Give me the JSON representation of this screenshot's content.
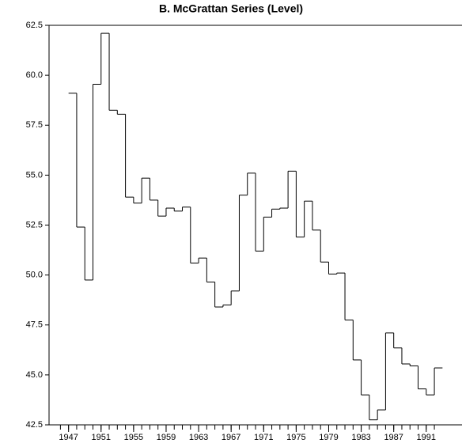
{
  "chart_data": {
    "type": "step",
    "title": "B. McGrattan Series (Level)",
    "x": [
      1947,
      1948,
      1949,
      1950,
      1951,
      1952,
      1953,
      1954,
      1955,
      1956,
      1957,
      1958,
      1959,
      1960,
      1961,
      1962,
      1963,
      1964,
      1965,
      1966,
      1967,
      1968,
      1969,
      1970,
      1971,
      1972,
      1973,
      1974,
      1975,
      1976,
      1977,
      1978,
      1979,
      1980,
      1981,
      1982,
      1983,
      1984,
      1985,
      1986,
      1987,
      1988,
      1989,
      1990,
      1991,
      1992
    ],
    "values": [
      59.1,
      52.4,
      49.75,
      59.55,
      62.1,
      58.25,
      58.05,
      53.9,
      53.6,
      54.85,
      53.75,
      52.95,
      53.35,
      53.2,
      53.4,
      50.6,
      50.85,
      49.65,
      48.4,
      48.5,
      49.2,
      54.0,
      55.1,
      51.2,
      52.9,
      53.3,
      53.35,
      55.2,
      51.9,
      53.7,
      52.25,
      50.65,
      50.05,
      50.1,
      47.75,
      45.75,
      44.0,
      42.75,
      43.25,
      47.1,
      46.35,
      45.55,
      45.45,
      44.3,
      44.0,
      45.35
    ],
    "color": "#000000",
    "xlim": [
      1944.6,
      1995.4
    ],
    "xticks": [
      1947,
      1951,
      1955,
      1959,
      1963,
      1967,
      1971,
      1975,
      1979,
      1983,
      1987,
      1991
    ],
    "xticks_minor": [
      1946,
      1947,
      1948,
      1949,
      1950,
      1951,
      1952,
      1953,
      1954,
      1955,
      1956,
      1957,
      1958,
      1959,
      1960,
      1961,
      1962,
      1963,
      1964,
      1965,
      1966,
      1967,
      1968,
      1969,
      1970,
      1971,
      1972,
      1973,
      1974,
      1975,
      1976,
      1977,
      1978,
      1979,
      1980,
      1981,
      1982,
      1983,
      1984,
      1985,
      1986,
      1987,
      1988,
      1989,
      1990,
      1991,
      1992
    ],
    "ylim": [
      42.5,
      62.5
    ],
    "yticks": [
      42.5,
      {
        "value": 45,
        "label": "45.0"
      },
      47.5,
      {
        "value": 50,
        "label": "50.0"
      },
      52.5,
      {
        "value": 55,
        "label": "55.0"
      },
      57.5,
      {
        "value": 60,
        "label": "60.0"
      },
      62.5
    ]
  }
}
